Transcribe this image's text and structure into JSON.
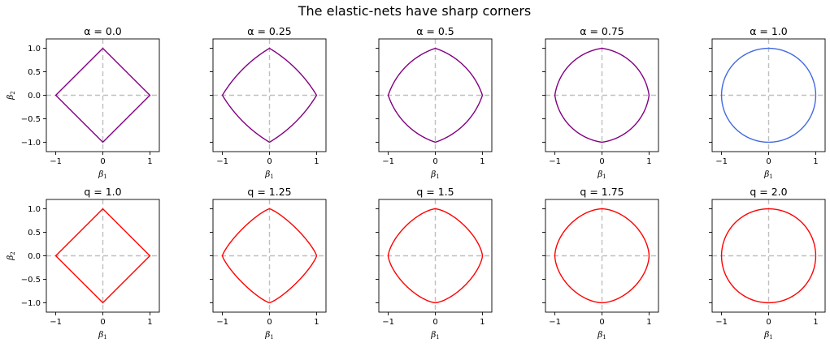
{
  "figure": {
    "suptitle": "The elastic-nets have sharp corners"
  },
  "colors": {
    "elastic_net": "#800080",
    "lasso_ridge_top": "#4169e1",
    "lq_norm": "#ff0000",
    "guide": "#bfbfbf",
    "axes": "#000000"
  },
  "chart_data": [
    {
      "type": "line",
      "row": 0,
      "title": "α = 0.0",
      "param": "alpha",
      "value": 0.0,
      "color": "#800080",
      "xlabel": "β1",
      "ylabel": "β2",
      "xlim": [
        -1.2,
        1.2
      ],
      "ylim": [
        -1.2,
        1.2
      ],
      "xticks": [
        "−1",
        "0",
        "1"
      ],
      "yticks": [
        "−1.0",
        "−0.5",
        "0.0",
        "0.5",
        "1.0"
      ],
      "grid": false
    },
    {
      "type": "line",
      "row": 0,
      "title": "α = 0.25",
      "param": "alpha",
      "value": 0.25,
      "color": "#800080",
      "xlabel": "β1",
      "ylabel": "",
      "xlim": [
        -1.2,
        1.2
      ],
      "ylim": [
        -1.2,
        1.2
      ],
      "xticks": [
        "−1",
        "0",
        "1"
      ],
      "yticks": [],
      "grid": false
    },
    {
      "type": "line",
      "row": 0,
      "title": "α = 0.5",
      "param": "alpha",
      "value": 0.5,
      "color": "#800080",
      "xlabel": "β1",
      "ylabel": "",
      "xlim": [
        -1.2,
        1.2
      ],
      "ylim": [
        -1.2,
        1.2
      ],
      "xticks": [
        "−1",
        "0",
        "1"
      ],
      "yticks": [],
      "grid": false
    },
    {
      "type": "line",
      "row": 0,
      "title": "α = 0.75",
      "param": "alpha",
      "value": 0.75,
      "color": "#800080",
      "xlabel": "β1",
      "ylabel": "",
      "xlim": [
        -1.2,
        1.2
      ],
      "ylim": [
        -1.2,
        1.2
      ],
      "xticks": [
        "−1",
        "0",
        "1"
      ],
      "yticks": [],
      "grid": false
    },
    {
      "type": "line",
      "row": 0,
      "title": "α = 1.0",
      "param": "alpha",
      "value": 1.0,
      "color": "#4169e1",
      "xlabel": "β1",
      "ylabel": "",
      "xlim": [
        -1.2,
        1.2
      ],
      "ylim": [
        -1.2,
        1.2
      ],
      "xticks": [
        "−1",
        "0",
        "1"
      ],
      "yticks": [],
      "grid": false
    },
    {
      "type": "line",
      "row": 1,
      "title": "q = 1.0",
      "param": "q",
      "value": 1.0,
      "color": "#ff0000",
      "xlabel": "β1",
      "ylabel": "β2",
      "xlim": [
        -1.2,
        1.2
      ],
      "ylim": [
        -1.2,
        1.2
      ],
      "xticks": [
        "−1",
        "0",
        "1"
      ],
      "yticks": [
        "−1.0",
        "−0.5",
        "0.0",
        "0.5",
        "1.0"
      ],
      "grid": false
    },
    {
      "type": "line",
      "row": 1,
      "title": "q = 1.25",
      "param": "q",
      "value": 1.25,
      "color": "#ff0000",
      "xlabel": "β1",
      "ylabel": "",
      "xlim": [
        -1.2,
        1.2
      ],
      "ylim": [
        -1.2,
        1.2
      ],
      "xticks": [
        "−1",
        "0",
        "1"
      ],
      "yticks": [],
      "grid": false
    },
    {
      "type": "line",
      "row": 1,
      "title": "q = 1.5",
      "param": "q",
      "value": 1.5,
      "color": "#ff0000",
      "xlabel": "β1",
      "ylabel": "",
      "xlim": [
        -1.2,
        1.2
      ],
      "ylim": [
        -1.2,
        1.2
      ],
      "xticks": [
        "−1",
        "0",
        "1"
      ],
      "yticks": [],
      "grid": false
    },
    {
      "type": "line",
      "row": 1,
      "title": "q = 1.75",
      "param": "q",
      "value": 1.75,
      "color": "#ff0000",
      "xlabel": "β1",
      "ylabel": "",
      "xlim": [
        -1.2,
        1.2
      ],
      "ylim": [
        -1.2,
        1.2
      ],
      "xticks": [
        "−1",
        "0",
        "1"
      ],
      "yticks": [],
      "grid": false
    },
    {
      "type": "line",
      "row": 1,
      "title": "q = 2.0",
      "param": "q",
      "value": 2.0,
      "color": "#ff0000",
      "xlabel": "β1",
      "ylabel": "",
      "xlim": [
        -1.2,
        1.2
      ],
      "ylim": [
        -1.2,
        1.2
      ],
      "xticks": [
        "−1",
        "0",
        "1"
      ],
      "yticks": [],
      "grid": false
    }
  ]
}
